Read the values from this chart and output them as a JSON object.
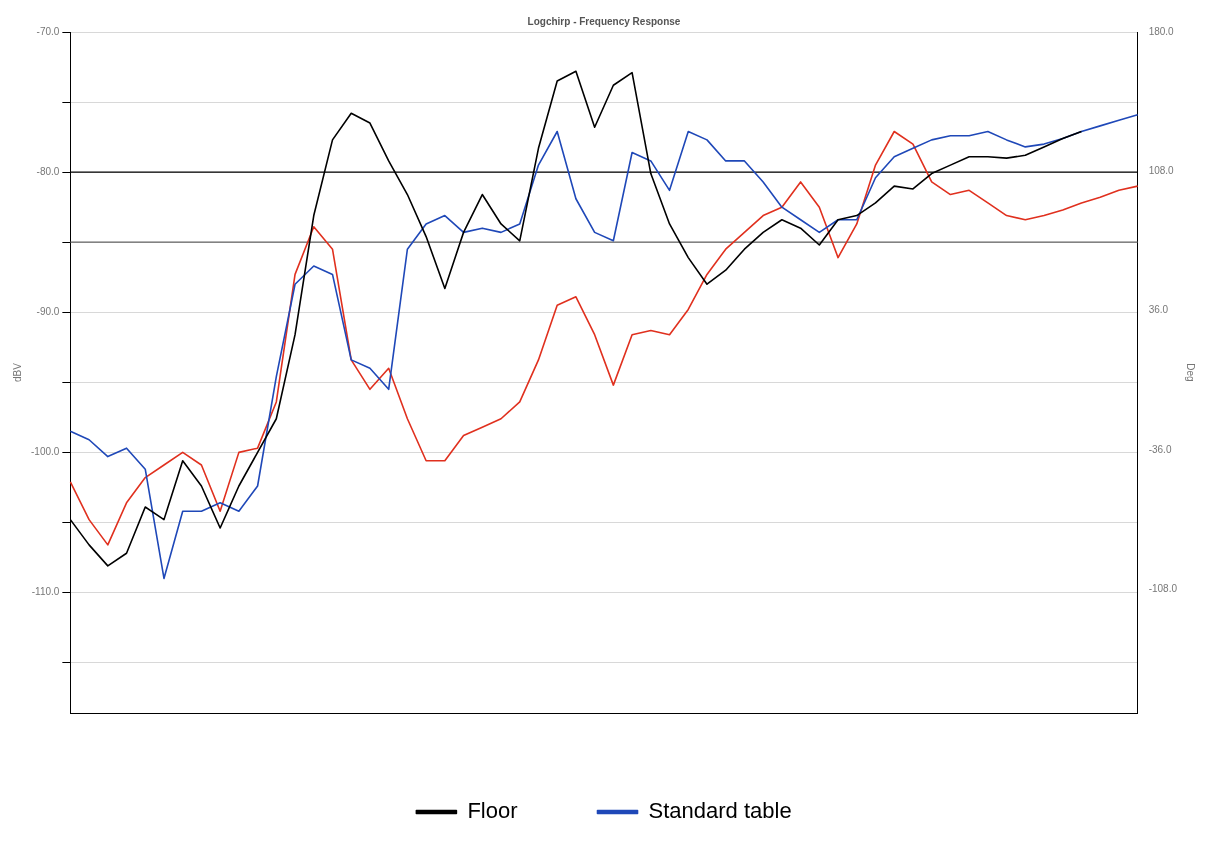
{
  "chart_data": {
    "type": "line",
    "title": "Logchirp - Frequency Response",
    "ylabel": "dBV",
    "y2label": "Deg",
    "categories": [
      null,
      null,
      null,
      null,
      null,
      null,
      null,
      null,
      null,
      null,
      null,
      null,
      null,
      null,
      null,
      null,
      null,
      null,
      null,
      null,
      null,
      null,
      null,
      null,
      null,
      null,
      null,
      null,
      null,
      null,
      null,
      null,
      null,
      null,
      null,
      null,
      null,
      null,
      null,
      null,
      null,
      null,
      null,
      null,
      null,
      null,
      null,
      null,
      null,
      null,
      null,
      null,
      null,
      null,
      null,
      null,
      null,
      null
    ],
    "series": [
      {
        "name": "Floor",
        "color": "#000000",
        "values": [
          -104.8,
          -106.6,
          -108.1,
          -107.2,
          -103.9,
          -104.8,
          -100.6,
          -102.4,
          -105.4,
          -102.4,
          -100.0,
          -97.6,
          -91.6,
          -83.1,
          -77.7,
          -75.8,
          -76.5,
          -79.2,
          -81.6,
          -84.6,
          -88.3,
          -84.3,
          -81.6,
          -83.7,
          -84.9,
          -78.3,
          -73.5,
          -72.8,
          -76.8,
          -73.8,
          -72.9,
          -80.1,
          -83.7,
          -86.1,
          -88.0,
          -87.0,
          -85.5,
          -84.3,
          -83.4,
          -84.0,
          -85.2,
          -83.4,
          -83.1,
          -82.2,
          -81.0,
          -81.2,
          -80.1,
          -79.5,
          -78.9,
          -78.9,
          -79.0,
          -78.8,
          -78.2,
          -77.6,
          -77.1,
          null,
          null,
          null
        ]
      },
      {
        "name": "Standard table",
        "color": "#1f48b8",
        "values": [
          -98.5,
          -99.1,
          -100.3,
          -99.7,
          -101.2,
          -109.0,
          -104.2,
          -104.2,
          -103.6,
          -104.2,
          -102.4,
          -94.6,
          -88.0,
          -86.7,
          -87.3,
          -93.4,
          -94.0,
          -95.5,
          -85.5,
          -83.7,
          -83.1,
          -84.3,
          -84.0,
          -84.3,
          -83.7,
          -79.5,
          -77.1,
          -81.9,
          -84.3,
          -84.9,
          -78.6,
          -79.2,
          -81.3,
          -77.1,
          -77.7,
          -79.2,
          -79.2,
          -80.7,
          -82.5,
          -83.4,
          -84.3,
          -83.4,
          -83.4,
          -80.4,
          -78.9,
          -78.3,
          -77.7,
          -77.4,
          -77.4,
          -77.1,
          -77.7,
          -78.2,
          -78.0,
          -77.6,
          -77.1,
          -76.7,
          -76.3,
          -75.9
        ]
      },
      {
        "color": "#e0301e",
        "values": [
          -102.1,
          -104.8,
          -106.6,
          -103.6,
          -101.8,
          -100.9,
          -100.0,
          -100.9,
          -104.2,
          -100.0,
          -99.7,
          -96.4,
          -87.3,
          -83.9,
          -85.5,
          -93.4,
          -95.5,
          -94.0,
          -97.6,
          -100.6,
          -100.6,
          -98.8,
          -98.2,
          -97.6,
          -96.4,
          -93.4,
          -89.5,
          -88.9,
          -91.6,
          -95.2,
          -91.6,
          -91.3,
          -91.6,
          -89.8,
          -87.3,
          -85.5,
          -84.3,
          -83.1,
          -82.5,
          -80.7,
          -82.5,
          -86.1,
          -83.7,
          -79.5,
          -77.1,
          -78.0,
          -80.7,
          -81.6,
          -81.3,
          -82.2,
          -83.1,
          -83.4,
          -83.1,
          -82.7,
          -82.2,
          -81.8,
          -81.3,
          -81.0
        ]
      }
    ],
    "ylim": [
      -118.6,
      -70
    ],
    "yticks": [
      {
        "value": -70,
        "label": "-70.0"
      },
      {
        "value": -75,
        "label": null
      },
      {
        "value": -80,
        "label": "-80.0"
      },
      {
        "value": -85,
        "label": null
      },
      {
        "value": -90,
        "label": "-90.0"
      },
      {
        "value": -95,
        "label": null
      },
      {
        "value": -100,
        "label": "-100.0"
      },
      {
        "value": -105,
        "label": null
      },
      {
        "value": -110,
        "label": "-110.0"
      },
      {
        "value": -115,
        "label": null
      }
    ],
    "y2lim": [
      -171.8,
      180
    ],
    "y2ticks": [
      {
        "value": 180,
        "label": "180.0"
      },
      {
        "value": 108,
        "label": "108.0"
      },
      {
        "value": 36,
        "label": "36.0"
      },
      {
        "value": -36,
        "label": "-36.0"
      },
      {
        "value": -108,
        "label": "-108.0"
      }
    ],
    "ref_lines": [
      {
        "axis": "y",
        "value": -80,
        "color": "#000000"
      },
      {
        "axis": "y",
        "value": -85,
        "color": "#666666"
      }
    ],
    "grid": "y",
    "legend": "bottom",
    "marker": "none",
    "line_style": "solid"
  }
}
